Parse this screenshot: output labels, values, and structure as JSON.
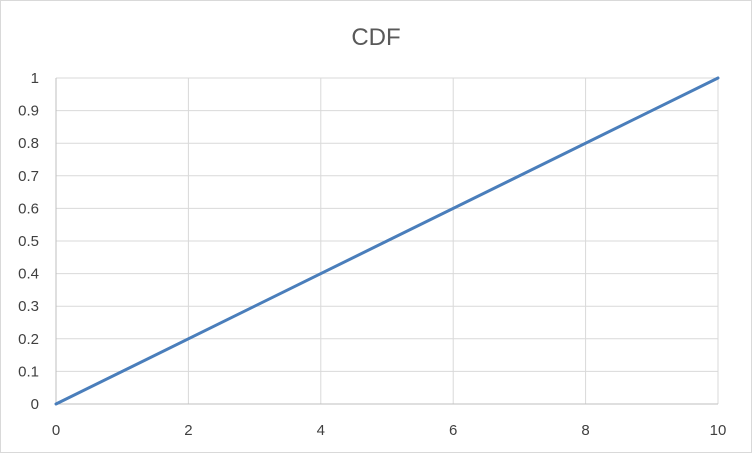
{
  "chart_data": {
    "type": "line",
    "title": "CDF",
    "xlabel": "",
    "ylabel": "",
    "xlim": [
      0,
      10
    ],
    "ylim": [
      0,
      1
    ],
    "x_ticks": [
      0,
      2,
      4,
      6,
      8,
      10
    ],
    "y_ticks": [
      0,
      0.1,
      0.2,
      0.3,
      0.4,
      0.5,
      0.6,
      0.7,
      0.8,
      0.9,
      1
    ],
    "x_grid_values": [
      0,
      2,
      4,
      6,
      8,
      10
    ],
    "grid": true,
    "legend": "none",
    "series": [
      {
        "color": "#4a7ebb",
        "x": [
          0,
          10
        ],
        "y": [
          0,
          1
        ]
      }
    ]
  }
}
